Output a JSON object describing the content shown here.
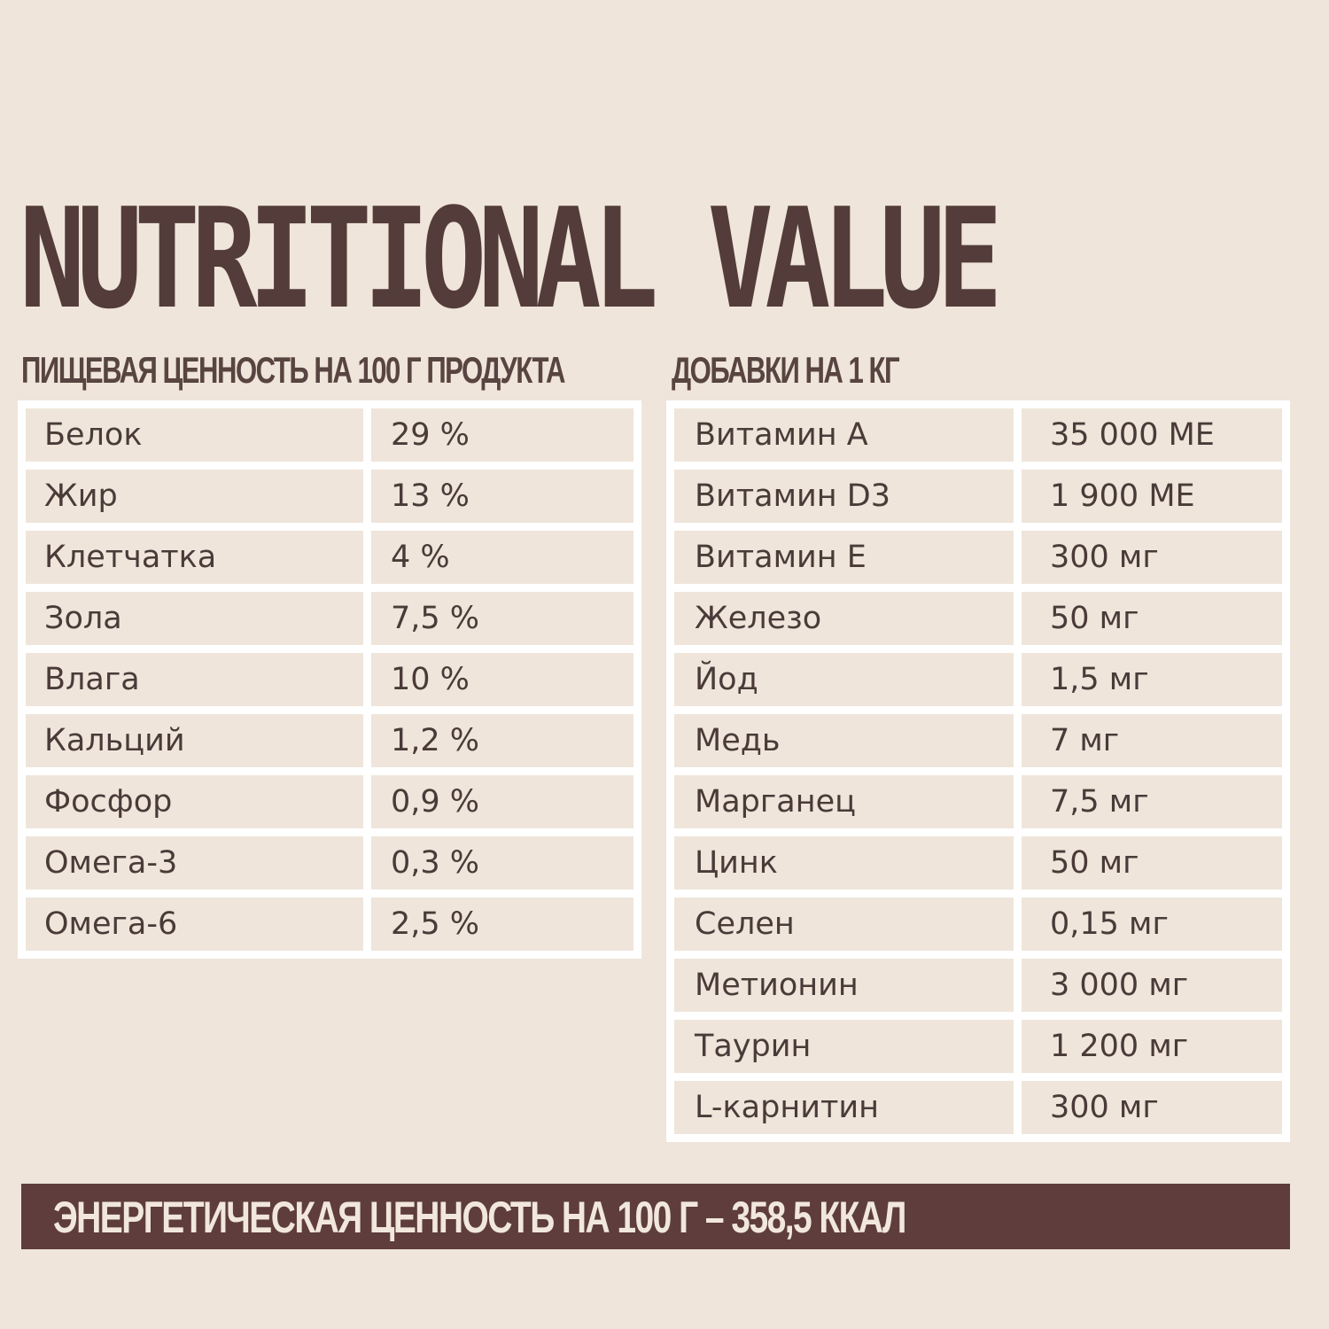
{
  "title": "NUTRITIONAL VALUE",
  "nutrition_heading": "ПИЩЕВАЯ ЦЕННОСТЬ НА 100 Г ПРОДУКТА",
  "additives_heading": "ДОБАВКИ НА 1 КГ",
  "nutrition": [
    {
      "name": "Белок",
      "value": "29 %"
    },
    {
      "name": "Жир",
      "value": "13 %"
    },
    {
      "name": "Клетчатка",
      "value": "4 %"
    },
    {
      "name": "Зола",
      "value": "7,5 %"
    },
    {
      "name": "Влага",
      "value": "10 %"
    },
    {
      "name": "Кальций",
      "value": "1,2 %"
    },
    {
      "name": "Фосфор",
      "value": "0,9 %"
    },
    {
      "name": "Омега-3",
      "value": "0,3 %"
    },
    {
      "name": "Омега-6",
      "value": "2,5 %"
    }
  ],
  "additives": [
    {
      "name": "Витамин А",
      "value": "35 000 МЕ"
    },
    {
      "name": "Витамин D3",
      "value": "1 900 МЕ"
    },
    {
      "name": "Витамин Е",
      "value": "300 мг"
    },
    {
      "name": "Железо",
      "value": "50 мг"
    },
    {
      "name": "Йод",
      "value": "1,5 мг"
    },
    {
      "name": "Медь",
      "value": "7 мг"
    },
    {
      "name": "Марганец",
      "value": "7,5 мг"
    },
    {
      "name": "Цинк",
      "value": "50 мг"
    },
    {
      "name": "Селен",
      "value": "0,15 мг"
    },
    {
      "name": "Метионин",
      "value": "3 000 мг"
    },
    {
      "name": "Таурин",
      "value": "1 200 мг"
    },
    {
      "name": "L-карнитин",
      "value": "300 мг"
    }
  ],
  "energy": "ЭНЕРГЕТИЧЕСКАЯ ЦЕННОСТЬ НА 100 Г – 358,5 ККАЛ",
  "colors": {
    "background": "#efe5da",
    "title": "#533c39",
    "grid": "#ffffff",
    "banner": "#5e3d3c",
    "banner_text": "#f1e7dc"
  }
}
